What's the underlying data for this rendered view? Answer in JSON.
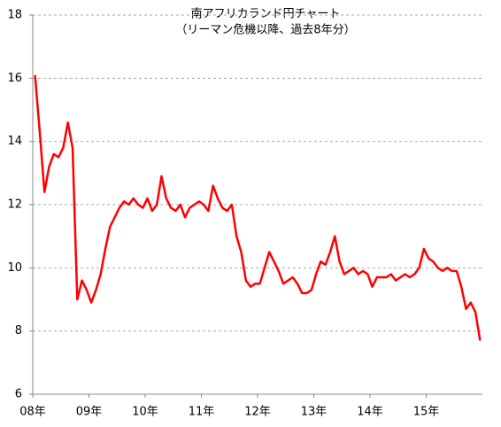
{
  "chart_data": {
    "type": "line",
    "title": "南アフリカランド円チャート",
    "subtitle": "（リーマン危機以降、過去8年分）",
    "categories": [
      "08年",
      null,
      null,
      null,
      null,
      null,
      null,
      null,
      null,
      null,
      null,
      null,
      "09年",
      null,
      null,
      null,
      null,
      null,
      null,
      null,
      null,
      null,
      null,
      null,
      "10年",
      null,
      null,
      null,
      null,
      null,
      null,
      null,
      null,
      null,
      null,
      null,
      "11年",
      null,
      null,
      null,
      null,
      null,
      null,
      null,
      null,
      null,
      null,
      null,
      "12年",
      null,
      null,
      null,
      null,
      null,
      null,
      null,
      null,
      null,
      null,
      null,
      "13年",
      null,
      null,
      null,
      null,
      null,
      null,
      null,
      null,
      null,
      null,
      null,
      "14年",
      null,
      null,
      null,
      null,
      null,
      null,
      null,
      null,
      null,
      null,
      null,
      "15年",
      null,
      null,
      null,
      null,
      null,
      null,
      null,
      null,
      null,
      null,
      null
    ],
    "values": [
      16.1,
      14.3,
      12.4,
      13.2,
      13.6,
      13.5,
      13.8,
      14.6,
      13.8,
      9.0,
      9.6,
      9.3,
      8.9,
      9.3,
      9.8,
      10.6,
      11.3,
      11.6,
      11.9,
      12.1,
      12.0,
      12.2,
      12.0,
      11.9,
      12.2,
      11.8,
      12.0,
      12.9,
      12.2,
      11.9,
      11.8,
      12.0,
      11.6,
      11.9,
      12.0,
      12.1,
      12.0,
      11.8,
      12.6,
      12.2,
      11.9,
      11.8,
      12.0,
      11.0,
      10.5,
      9.6,
      9.4,
      9.5,
      9.5,
      10.0,
      10.5,
      10.2,
      9.9,
      9.5,
      9.6,
      9.7,
      9.5,
      9.2,
      9.2,
      9.3,
      9.8,
      10.2,
      10.1,
      10.5,
      11.0,
      10.2,
      9.8,
      9.9,
      10.0,
      9.8,
      9.9,
      9.8,
      9.4,
      9.7,
      9.7,
      9.7,
      9.8,
      9.6,
      9.7,
      9.8,
      9.7,
      9.8,
      10.0,
      10.6,
      10.3,
      10.2,
      10.0,
      9.9,
      10.0,
      9.9,
      9.9,
      9.4,
      8.7,
      8.9,
      8.6,
      7.7
    ],
    "color": "#ff0000",
    "ylim": [
      6,
      18
    ],
    "yticks": [
      6,
      8,
      10,
      12,
      14,
      16,
      18
    ],
    "grid": true
  }
}
